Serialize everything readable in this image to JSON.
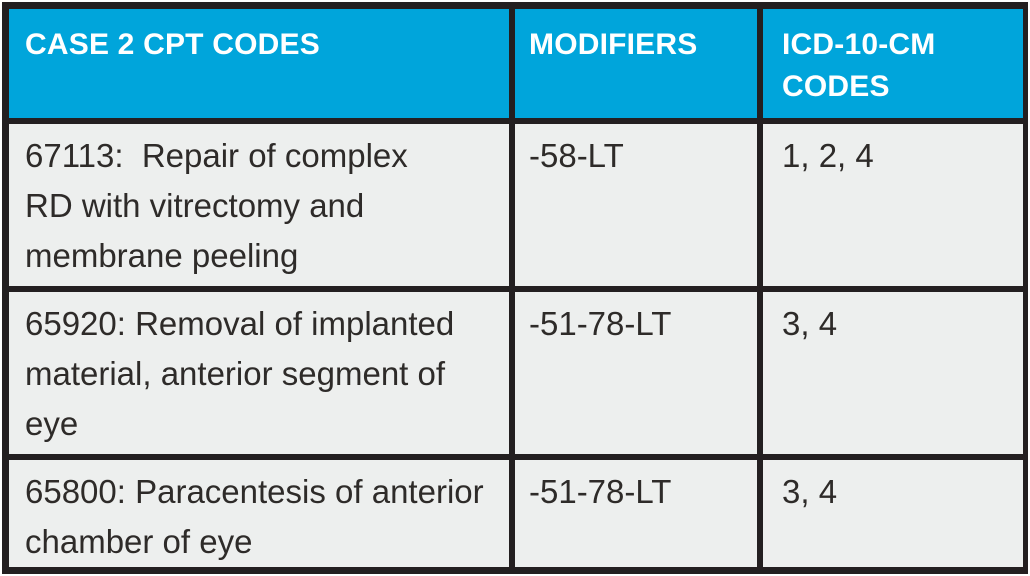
{
  "colors": {
    "header_bg": "#00a5db",
    "header_text": "#ffffff",
    "body_bg": "#edefee",
    "border": "#231f20",
    "body_text": "#2e2b29"
  },
  "table": {
    "columns": [
      {
        "label": "CASE 2 CPT CODES"
      },
      {
        "label": "MODIFIERS"
      },
      {
        "label": "ICD-10-CM\nCODES"
      }
    ],
    "rows": [
      {
        "cpt": "67113:  Repair of complex\nRD with vitrectomy and\nmembrane peeling",
        "modifiers": "-58-LT",
        "icd": "1, 2, 4"
      },
      {
        "cpt": "65920: Removal of implanted\nmaterial, anterior segment of\neye",
        "modifiers": "-51-78-LT",
        "icd": "3, 4"
      },
      {
        "cpt": "65800: Paracentesis of anterior\nchamber of eye",
        "modifiers": "-51-78-LT",
        "icd": "3, 4"
      }
    ]
  }
}
